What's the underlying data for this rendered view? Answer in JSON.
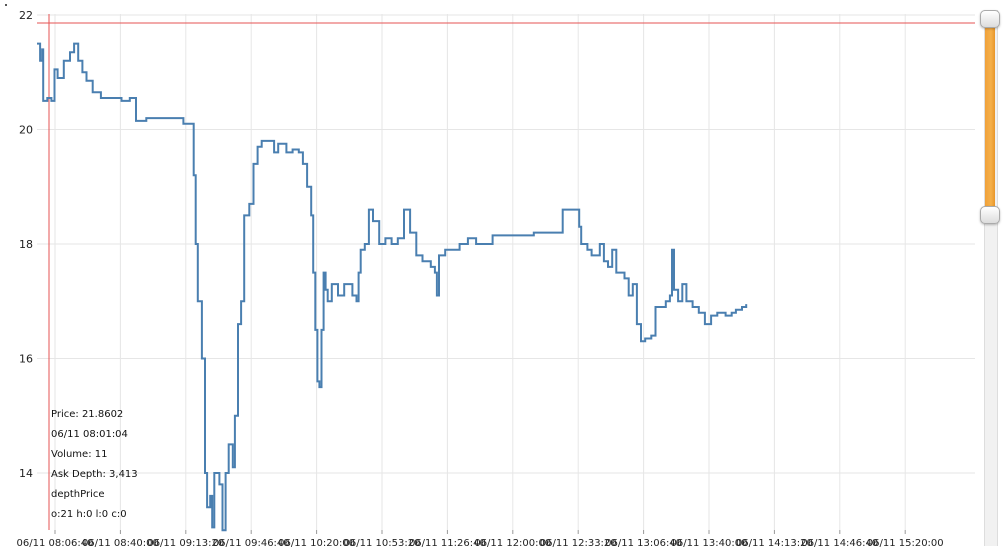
{
  "colors": {
    "line": "#4a7fb0",
    "cursor": "#e55353",
    "grid": "#e6e6e6",
    "slider": "#f0a13a"
  },
  "cursor_info": {
    "price": "Price: 21.8602",
    "time": "06/11 08:01:04",
    "volume": "Volume: 11",
    "ask_depth": "Ask Depth: 3,413",
    "depth_price": "depthPrice",
    "ohlc": "o:21 h:0 l:0 c:0"
  },
  "slider": {
    "upper_handle": "range-start-handle",
    "lower_handle": "range-end-handle"
  },
  "chart_data": {
    "type": "line",
    "title": "",
    "xlabel": "",
    "ylabel": "",
    "ylim": [
      13,
      22
    ],
    "yticks": [
      14,
      16,
      18,
      20,
      22
    ],
    "xlim": [
      "06/11 07:59:00",
      "06/11 15:34:00"
    ],
    "xtick_labels": [
      "06/11 08:06:40",
      "06/11 08:40:00",
      "06/11 09:13:20",
      "06/11 09:46:40",
      "06/11 10:20:00",
      "06/11 10:53:20",
      "06/11 11:26:40",
      "06/11 12:00:00",
      "06/11 12:33:20",
      "06/11 13:06:40",
      "06/11 13:40:00",
      "06/11 14:13:20",
      "06/11 14:46:40",
      "06/11 15:20:00"
    ],
    "grid": true,
    "cursor": {
      "x": "06/11 08:01:04",
      "y": 21.8602
    },
    "series": [
      {
        "points": [
          [
            "06/11 07:59:00",
            21.5
          ],
          [
            "06/11 08:00:30",
            21.2
          ],
          [
            "06/11 08:01:30",
            21.4
          ],
          [
            "06/11 08:02:00",
            20.5
          ],
          [
            "06/11 08:04:00",
            20.55
          ],
          [
            "06/11 08:06:00",
            20.5
          ],
          [
            "06/11 08:07:30",
            21.05
          ],
          [
            "06/11 08:09:00",
            20.9
          ],
          [
            "06/11 08:12:00",
            21.2
          ],
          [
            "06/11 08:15:00",
            21.35
          ],
          [
            "06/11 08:17:00",
            21.5
          ],
          [
            "06/11 08:19:00",
            21.2
          ],
          [
            "06/11 08:21:00",
            21.0
          ],
          [
            "06/11 08:23:00",
            20.85
          ],
          [
            "06/11 08:26:00",
            20.65
          ],
          [
            "06/11 08:30:00",
            20.55
          ],
          [
            "06/11 08:40:00",
            20.5
          ],
          [
            "06/11 08:44:00",
            20.55
          ],
          [
            "06/11 08:47:00",
            20.15
          ],
          [
            "06/11 08:52:00",
            20.2
          ],
          [
            "06/11 09:00:00",
            20.2
          ],
          [
            "06/11 09:07:00",
            20.2
          ],
          [
            "06/11 09:10:00",
            20.1
          ],
          [
            "06/11 09:14:00",
            20.1
          ],
          [
            "06/11 09:15:00",
            19.2
          ],
          [
            "06/11 09:16:00",
            18.0
          ],
          [
            "06/11 09:17:00",
            17.0
          ],
          [
            "06/11 09:19:00",
            16.0
          ],
          [
            "06/11 09:20:30",
            14.0
          ],
          [
            "06/11 09:21:30",
            13.4
          ],
          [
            "06/11 09:23:00",
            13.6
          ],
          [
            "06/11 09:24:00",
            13.05
          ],
          [
            "06/11 09:25:00",
            14.0
          ],
          [
            "06/11 09:27:30",
            13.8
          ],
          [
            "06/11 09:29:00",
            13.0
          ],
          [
            "06/11 09:30:30",
            14.0
          ],
          [
            "06/11 09:32:00",
            14.5
          ],
          [
            "06/11 09:34:00",
            14.1
          ],
          [
            "06/11 09:35:00",
            15.0
          ],
          [
            "06/11 09:36:30",
            16.6
          ],
          [
            "06/11 09:38:00",
            17.0
          ],
          [
            "06/11 09:39:30",
            18.5
          ],
          [
            "06/11 09:42:00",
            18.7
          ],
          [
            "06/11 09:44:00",
            19.4
          ],
          [
            "06/11 09:46:00",
            19.7
          ],
          [
            "06/11 09:48:00",
            19.8
          ],
          [
            "06/11 09:51:00",
            19.8
          ],
          [
            "06/11 09:54:00",
            19.6
          ],
          [
            "06/11 09:56:00",
            19.75
          ],
          [
            "06/11 10:00:00",
            19.6
          ],
          [
            "06/11 10:03:00",
            19.65
          ],
          [
            "06/11 10:06:00",
            19.6
          ],
          [
            "06/11 10:08:00",
            19.4
          ],
          [
            "06/11 10:10:00",
            19.0
          ],
          [
            "06/11 10:12:00",
            18.5
          ],
          [
            "06/11 10:13:00",
            17.5
          ],
          [
            "06/11 10:14:00",
            16.5
          ],
          [
            "06/11 10:15:00",
            15.6
          ],
          [
            "06/11 10:16:00",
            15.5
          ],
          [
            "06/11 10:17:00",
            16.5
          ],
          [
            "06/11 10:18:00",
            17.5
          ],
          [
            "06/11 10:19:00",
            17.2
          ],
          [
            "06/11 10:20:00",
            17.0
          ],
          [
            "06/11 10:22:00",
            17.3
          ],
          [
            "06/11 10:25:00",
            17.1
          ],
          [
            "06/11 10:28:00",
            17.3
          ],
          [
            "06/11 10:32:00",
            17.1
          ],
          [
            "06/11 10:34:00",
            17.0
          ],
          [
            "06/11 10:35:00",
            17.5
          ],
          [
            "06/11 10:36:00",
            17.9
          ],
          [
            "06/11 10:38:00",
            18.0
          ],
          [
            "06/11 10:40:00",
            18.6
          ],
          [
            "06/11 10:42:00",
            18.4
          ],
          [
            "06/11 10:45:00",
            18.0
          ],
          [
            "06/11 10:48:00",
            18.1
          ],
          [
            "06/11 10:51:00",
            18.0
          ],
          [
            "06/11 10:54:00",
            18.1
          ],
          [
            "06/11 10:57:00",
            18.6
          ],
          [
            "06/11 11:00:00",
            18.2
          ],
          [
            "06/11 11:03:00",
            17.8
          ],
          [
            "06/11 11:06:00",
            17.7
          ],
          [
            "06/11 11:10:00",
            17.6
          ],
          [
            "06/11 11:12:00",
            17.5
          ],
          [
            "06/11 11:13:00",
            17.1
          ],
          [
            "06/11 11:14:00",
            17.8
          ],
          [
            "06/11 11:17:00",
            17.9
          ],
          [
            "06/11 11:20:00",
            17.9
          ],
          [
            "06/11 11:24:00",
            18.0
          ],
          [
            "06/11 11:28:00",
            18.1
          ],
          [
            "06/11 11:32:00",
            18.0
          ],
          [
            "06/11 11:40:00",
            18.15
          ],
          [
            "06/11 11:50:00",
            18.15
          ],
          [
            "06/11 12:00:00",
            18.2
          ],
          [
            "06/11 12:13:00",
            18.2
          ],
          [
            "06/11 12:14:00",
            18.6
          ],
          [
            "06/11 12:20:00",
            18.6
          ],
          [
            "06/11 12:22:00",
            18.3
          ],
          [
            "06/11 12:23:00",
            18.0
          ],
          [
            "06/11 12:26:00",
            17.9
          ],
          [
            "06/11 12:28:00",
            17.8
          ],
          [
            "06/11 12:32:00",
            18.0
          ],
          [
            "06/11 12:34:00",
            17.7
          ],
          [
            "06/11 12:36:00",
            17.6
          ],
          [
            "06/11 12:38:00",
            17.9
          ],
          [
            "06/11 12:40:00",
            17.5
          ],
          [
            "06/11 12:44:00",
            17.4
          ],
          [
            "06/11 12:46:00",
            17.1
          ],
          [
            "06/11 12:48:00",
            17.3
          ],
          [
            "06/11 12:50:00",
            16.6
          ],
          [
            "06/11 12:52:00",
            16.3
          ],
          [
            "06/11 12:54:00",
            16.35
          ],
          [
            "06/11 12:57:00",
            16.4
          ],
          [
            "06/11 12:59:00",
            16.9
          ],
          [
            "06/11 13:02:00",
            16.9
          ],
          [
            "06/11 13:04:00",
            17.0
          ],
          [
            "06/11 13:06:00",
            17.1
          ],
          [
            "06/11 13:07:00",
            17.9
          ],
          [
            "06/11 13:08:00",
            17.2
          ],
          [
            "06/11 13:10:00",
            17.0
          ],
          [
            "06/11 13:12:00",
            17.3
          ],
          [
            "06/11 13:14:00",
            17.0
          ],
          [
            "06/11 13:17:00",
            16.9
          ],
          [
            "06/11 13:20:00",
            16.8
          ],
          [
            "06/11 13:23:00",
            16.6
          ],
          [
            "06/11 13:26:00",
            16.75
          ],
          [
            "06/11 13:29:00",
            16.8
          ],
          [
            "06/11 13:33:00",
            16.75
          ],
          [
            "06/11 13:36:00",
            16.8
          ],
          [
            "06/11 13:38:00",
            16.85
          ],
          [
            "06/11 13:41:00",
            16.9
          ],
          [
            "06/11 13:43:00",
            16.95
          ]
        ]
      }
    ]
  }
}
